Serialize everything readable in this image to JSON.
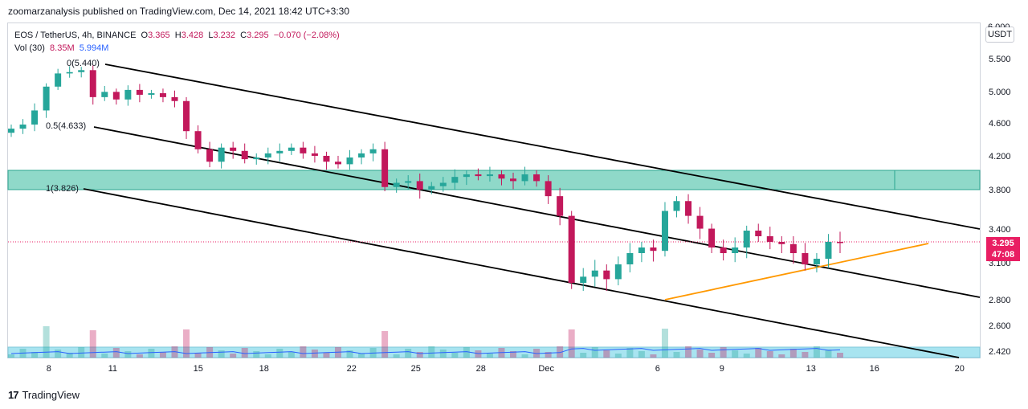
{
  "header": {
    "publisher_text": "zoomarzanalysis published on TradingView.com, Dec 14, 2021 18:42 UTC+3:30"
  },
  "legend": {
    "symbol": "EOS / TetherUS, 4h, BINANCE",
    "open_label": "O",
    "open": "3.365",
    "high_label": "H",
    "high": "3.428",
    "low_label": "L",
    "low": "3.232",
    "close_label": "C",
    "close": "3.295",
    "change": "−0.070 (−2.08%)",
    "volume_label": "Vol (30)",
    "volume": "8.35M",
    "volume_ma": "5.994M"
  },
  "currency_button": "USDT",
  "price_tag": {
    "price": "3.295",
    "countdown": "47:08"
  },
  "brand": {
    "logo": "17",
    "name": "TradingView"
  },
  "colors": {
    "up": "#26a69a",
    "down": "#c2185b",
    "zone": "#7fd1c0",
    "volume_band": "#a8e4f0",
    "orange_line": "#ff9800",
    "price_line": "#e91e63",
    "volume_ma": "#2962ff"
  },
  "chart_data": {
    "type": "candlestick",
    "symbol": "EOS / TetherUS",
    "timeframe": "4h",
    "x_ticks": [
      "8",
      "11",
      "15",
      "18",
      "22",
      "25",
      "28",
      "Dec",
      "6",
      "9",
      "13",
      "16",
      "20"
    ],
    "y_ticks": [
      "5.500",
      "5.000",
      "4.600",
      "4.200",
      "3.800",
      "3.400",
      "3.100",
      "2.800",
      "2.600",
      "2.420"
    ],
    "y_top_label": "6.000",
    "fib_labels": [
      {
        "label": "0(5.440)",
        "value": 5.44
      },
      {
        "label": "0.5(4.633)",
        "value": 4.633
      },
      {
        "label": "1(3.826)",
        "value": 3.826
      }
    ],
    "resistance_zone": {
      "low": 3.826,
      "high": 4.05
    },
    "last_price": 3.295,
    "close_series": [
      4.55,
      4.6,
      4.78,
      5.1,
      5.3,
      5.32,
      5.35,
      4.95,
      5.02,
      4.92,
      5.05,
      4.98,
      5.0,
      4.95,
      4.9,
      4.52,
      4.3,
      4.15,
      4.32,
      4.28,
      4.18,
      4.2,
      4.25,
      4.28,
      4.32,
      4.25,
      4.22,
      4.15,
      4.12,
      4.2,
      4.25,
      4.3,
      3.85,
      3.9,
      3.92,
      3.82,
      3.86,
      3.9,
      3.97,
      4.0,
      3.98,
      4.0,
      3.95,
      3.92,
      4.0,
      3.92,
      3.75,
      3.55,
      2.95,
      3.0,
      3.05,
      2.98,
      3.1,
      3.2,
      3.25,
      3.22,
      3.6,
      3.7,
      3.55,
      3.42,
      3.25,
      3.2,
      3.25,
      3.4,
      3.35,
      3.3,
      3.28,
      3.2,
      3.1,
      3.15,
      3.3,
      3.295
    ]
  }
}
